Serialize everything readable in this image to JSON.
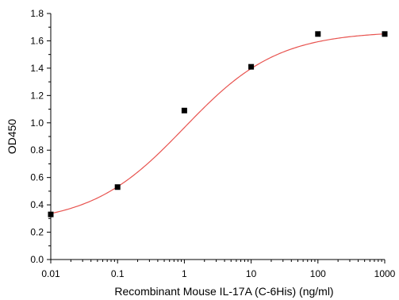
{
  "chart_data": {
    "type": "scatter",
    "title": "",
    "xlabel": "Recombinant Mouse IL-17A (C-6His) (ng/ml)",
    "ylabel": "OD450",
    "xscale": "log",
    "xlim": [
      0.01,
      1000
    ],
    "ylim": [
      0,
      1.8
    ],
    "grid": false,
    "legend": "none",
    "x_ticks": [
      "0.01",
      "0.1",
      "1",
      "10",
      "100",
      "1000"
    ],
    "y_ticks": [
      "0.0",
      "0.2",
      "0.4",
      "0.6",
      "0.8",
      "1.0",
      "1.2",
      "1.4",
      "1.6",
      "1.8"
    ],
    "series": [
      {
        "points": [
          {
            "x": 0.01,
            "y": 0.33
          },
          {
            "x": 0.1,
            "y": 0.53
          },
          {
            "x": 1,
            "y": 1.09
          },
          {
            "x": 10,
            "y": 1.41
          },
          {
            "x": 100,
            "y": 1.65
          },
          {
            "x": 1000,
            "y": 1.65
          }
        ],
        "marker": "square",
        "color": "#000000"
      }
    ],
    "fit_curve": {
      "model": "4PL",
      "bottom": 0.26,
      "top": 1.67,
      "ec50": 1.0,
      "hill": 0.62,
      "color": "#e8534f"
    }
  }
}
